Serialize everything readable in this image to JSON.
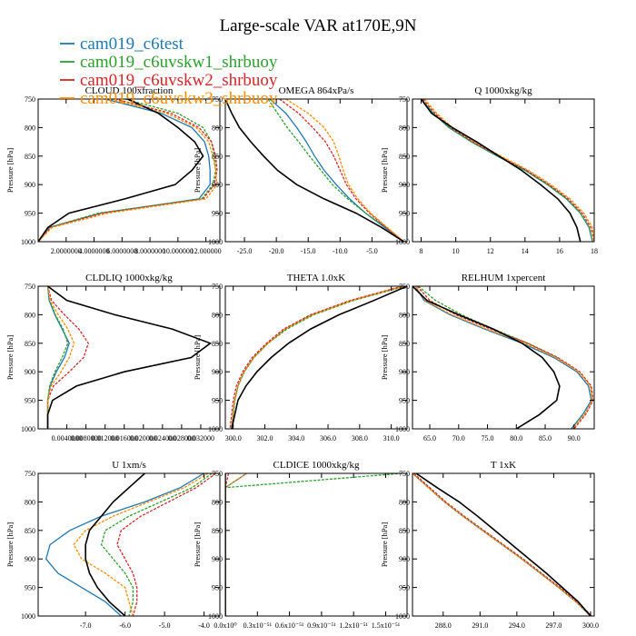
{
  "title": "Large-scale VAR at170E,9N",
  "colors": {
    "cam019_c6test": "#1f77b4",
    "cam019_c6uvskw1_shrbuoy": "#2ca02c",
    "cam019_c6uvskw2_shrbuoy": "#d62728",
    "cam019_c6uvskw3_shrbuoy": "#ff8c00",
    "reference": "#000000"
  },
  "legend": [
    {
      "name": "cam019_c6test",
      "color": "#1f77b4"
    },
    {
      "name": "cam019_c6uvskw1_shrbuoy",
      "color": "#2ca02c"
    },
    {
      "name": "cam019_c6uvskw2_shrbuoy",
      "color": "#d62728"
    },
    {
      "name": "cam019_c6uvskw3_shrbuoy",
      "color": "#ff8c00"
    }
  ],
  "chart_data": [
    {
      "type": "line",
      "title": "CLOUD 100xfraction",
      "xlabel": "",
      "ylabel": "Pressure [hPa]",
      "xlim": [
        0,
        0.13
      ],
      "ylim": [
        1000,
        750
      ],
      "xticks": [
        0.02,
        0.04,
        0.06,
        0.08,
        0.1,
        0.12
      ],
      "xtick_labels": [
        "2.0000000",
        "4.0000000",
        "6.0000000",
        "8.0000000",
        "10.000000",
        "12.000000"
      ],
      "yticks": [
        750,
        800,
        850,
        900,
        950,
        1000
      ],
      "p": [
        750,
        775,
        800,
        825,
        850,
        875,
        900,
        925,
        950,
        975,
        1000
      ],
      "series": [
        {
          "name": "cam019_c6test",
          "values": [
            0.048,
            0.088,
            0.11,
            0.119,
            0.122,
            0.123,
            0.123,
            0.115,
            0.045,
            0.008,
            0.0
          ]
        },
        {
          "name": "cam019_c6uvskw1_shrbuoy",
          "values": [
            0.062,
            0.1,
            0.118,
            0.124,
            0.126,
            0.127,
            0.125,
            0.117,
            0.043,
            0.008,
            0.0
          ]
        },
        {
          "name": "cam019_c6uvskw2_shrbuoy",
          "values": [
            0.055,
            0.095,
            0.115,
            0.124,
            0.127,
            0.128,
            0.126,
            0.118,
            0.046,
            0.009,
            0.0
          ]
        },
        {
          "name": "cam019_c6uvskw3_shrbuoy",
          "values": [
            0.052,
            0.092,
            0.113,
            0.122,
            0.125,
            0.127,
            0.128,
            0.12,
            0.05,
            0.01,
            0.0
          ]
        },
        {
          "name": "",
          "values": [
            0.064,
            0.086,
            0.1,
            0.112,
            0.118,
            0.11,
            0.098,
            0.062,
            0.022,
            0.007,
            0.0
          ]
        }
      ]
    },
    {
      "type": "line",
      "title": "OMEGA 864xPa/s",
      "xlabel": "",
      "ylabel": "Pressure [hPa]",
      "xlim": [
        -28.0,
        0.5
      ],
      "ylim": [
        1000,
        750
      ],
      "xticks": [
        -25,
        -20,
        -15,
        -10,
        -5
      ],
      "xtick_labels": [
        "-25.0",
        "-20.0",
        "-15.0",
        "-10.0",
        "-5.0"
      ],
      "yticks": [
        750,
        800,
        850,
        900,
        950,
        1000
      ],
      "p": [
        750,
        775,
        800,
        825,
        850,
        875,
        900,
        925,
        950,
        975,
        1000
      ],
      "series": [
        {
          "name": "cam019_c6test",
          "values": [
            -21.0,
            -18.5,
            -16.8,
            -15.3,
            -14.0,
            -12.5,
            -10.6,
            -8.5,
            -6.0,
            -3.0,
            0.0
          ]
        },
        {
          "name": "cam019_c6uvskw1_shrbuoy",
          "values": [
            -21.3,
            -19.8,
            -18.3,
            -16.5,
            -14.8,
            -13.0,
            -11.2,
            -8.8,
            -6.0,
            -2.8,
            0.0
          ]
        },
        {
          "name": "cam019_c6uvskw2_shrbuoy",
          "values": [
            -19.5,
            -16.5,
            -14.3,
            -12.3,
            -11.0,
            -10.0,
            -9.0,
            -7.5,
            -5.4,
            -2.8,
            0.0
          ]
        },
        {
          "name": "cam019_c6uvskw3_shrbuoy",
          "values": [
            -18.5,
            -15.0,
            -12.5,
            -11.0,
            -10.2,
            -9.5,
            -8.7,
            -7.2,
            -5.2,
            -2.6,
            0.0
          ]
        },
        {
          "name": "",
          "values": [
            -28.0,
            -27.0,
            -25.8,
            -24.0,
            -22.0,
            -19.8,
            -16.8,
            -12.5,
            -7.5,
            -3.5,
            0.0
          ]
        }
      ]
    },
    {
      "type": "line",
      "title": "Q 1000xkg/kg",
      "xlabel": "",
      "ylabel": "Pressure [hPa]",
      "xlim": [
        7.5,
        18
      ],
      "ylim": [
        1000,
        750
      ],
      "xticks": [
        8,
        10,
        12,
        14,
        16,
        18
      ],
      "xtick_labels": [
        "8",
        "10",
        "12",
        "14",
        "16",
        "18"
      ],
      "yticks": [
        750,
        800,
        850,
        900,
        950,
        1000
      ],
      "p": [
        750,
        775,
        800,
        825,
        850,
        875,
        900,
        925,
        950,
        975,
        1000
      ],
      "series": [
        {
          "name": "cam019_c6test",
          "values": [
            8.0,
            8.7,
            9.6,
            10.9,
            12.4,
            14.0,
            15.3,
            16.4,
            17.2,
            17.7,
            17.9
          ]
        },
        {
          "name": "cam019_c6uvskw1_shrbuoy",
          "values": [
            8.0,
            8.7,
            9.6,
            10.9,
            12.4,
            14.0,
            15.3,
            16.4,
            17.2,
            17.7,
            17.9
          ]
        },
        {
          "name": "cam019_c6uvskw2_shrbuoy",
          "values": [
            8.1,
            8.8,
            9.7,
            11.0,
            12.5,
            14.1,
            15.4,
            16.5,
            17.3,
            17.8,
            18.0
          ]
        },
        {
          "name": "cam019_c6uvskw3_shrbuoy",
          "values": [
            8.2,
            8.9,
            9.8,
            11.1,
            12.6,
            14.2,
            15.5,
            16.6,
            17.4,
            17.9,
            18.0
          ]
        },
        {
          "name": "",
          "values": [
            8.0,
            8.6,
            9.8,
            11.2,
            12.5,
            13.8,
            14.9,
            15.9,
            16.6,
            17.0,
            17.2
          ]
        }
      ]
    },
    {
      "type": "line",
      "title": "CLDLIQ 1000xkg/kg",
      "xlabel": "",
      "ylabel": "Pressure [hPa]",
      "xlim": [
        -0.002,
        0.036
      ],
      "ylim": [
        1000,
        750
      ],
      "xticks": [
        0.004,
        0.008,
        0.012,
        0.016,
        0.02,
        0.024,
        0.028,
        0.032
      ],
      "xtick_labels": [
        "0.0040000",
        "0.0080000",
        "0.012000",
        "0.016000",
        "0.020000",
        "0.024000",
        "0.028000",
        "0.032000"
      ],
      "yticks": [
        750,
        800,
        850,
        900,
        950,
        1000
      ],
      "p": [
        750,
        775,
        800,
        825,
        850,
        875,
        900,
        925,
        950,
        975,
        1000
      ],
      "series": [
        {
          "name": "cam019_c6test",
          "values": [
            0.0,
            0.0003,
            0.0015,
            0.003,
            0.0045,
            0.0035,
            0.0018,
            0.0005,
            0.0,
            0.0,
            0.0
          ]
        },
        {
          "name": "cam019_c6uvskw1_shrbuoy",
          "values": [
            0.0,
            0.0004,
            0.0016,
            0.0032,
            0.0042,
            0.003,
            0.0015,
            0.0004,
            0.0,
            0.0,
            0.0
          ]
        },
        {
          "name": "cam019_c6uvskw2_shrbuoy",
          "values": [
            0.0,
            0.0008,
            0.0035,
            0.0065,
            0.0085,
            0.0075,
            0.0045,
            0.0012,
            0.0,
            0.0,
            0.0
          ]
        },
        {
          "name": "cam019_c6uvskw3_shrbuoy",
          "values": [
            0.0,
            0.0005,
            0.0022,
            0.0042,
            0.0055,
            0.0045,
            0.0028,
            0.0007,
            0.0,
            0.0,
            0.0
          ]
        },
        {
          "name": "",
          "values": [
            0.0,
            0.004,
            0.014,
            0.026,
            0.034,
            0.03,
            0.016,
            0.006,
            0.001,
            0.0,
            0.0
          ]
        }
      ]
    },
    {
      "type": "line",
      "title": "THETA 1.0xK",
      "xlabel": "",
      "ylabel": "Pressure [hPa]",
      "xlim": [
        299.5,
        311.0
      ],
      "ylim": [
        1000,
        750
      ],
      "xticks": [
        300,
        302,
        304,
        306,
        308,
        310
      ],
      "xtick_labels": [
        "300.0",
        "302.0",
        "304.0",
        "306.0",
        "308.0",
        "310.0"
      ],
      "yticks": [
        750,
        800,
        850,
        900,
        950,
        1000
      ],
      "p": [
        750,
        775,
        800,
        825,
        850,
        875,
        900,
        925,
        950,
        975,
        1000
      ],
      "series": [
        {
          "name": "cam019_c6test",
          "values": [
            310.8,
            307.5,
            305.0,
            303.3,
            302.2,
            301.3,
            300.7,
            300.3,
            300.1,
            300.0,
            299.9
          ]
        },
        {
          "name": "cam019_c6uvskw1_shrbuoy",
          "values": [
            310.9,
            307.6,
            305.1,
            303.4,
            302.2,
            301.3,
            300.7,
            300.3,
            300.1,
            300.0,
            299.9
          ]
        },
        {
          "name": "cam019_c6uvskw2_shrbuoy",
          "values": [
            310.7,
            307.4,
            304.9,
            303.2,
            302.1,
            301.2,
            300.6,
            300.2,
            300.0,
            299.9,
            299.8
          ]
        },
        {
          "name": "cam019_c6uvskw3_shrbuoy",
          "values": [
            310.8,
            307.5,
            305.0,
            303.3,
            302.2,
            301.3,
            300.7,
            300.3,
            300.1,
            300.0,
            299.9
          ]
        },
        {
          "name": "",
          "values": [
            311.0,
            308.9,
            306.7,
            304.9,
            303.5,
            302.4,
            301.5,
            300.8,
            300.3,
            300.1,
            299.9
          ]
        }
      ]
    },
    {
      "type": "line",
      "title": "RELHUM 1xpercent",
      "xlabel": "",
      "ylabel": "Pressure [hPa]",
      "xlim": [
        62,
        93.5
      ],
      "ylim": [
        1000,
        750
      ],
      "xticks": [
        65,
        70,
        75,
        80,
        85,
        90
      ],
      "xtick_labels": [
        "65.0",
        "70.0",
        "75.0",
        "80.0",
        "85.0",
        "90.0"
      ],
      "yticks": [
        750,
        800,
        850,
        900,
        950,
        1000
      ],
      "p": [
        750,
        775,
        800,
        825,
        850,
        875,
        900,
        925,
        950,
        975,
        1000
      ],
      "series": [
        {
          "name": "cam019_c6test",
          "values": [
            62.5,
            64.0,
            68.5,
            74.5,
            81.0,
            86.5,
            90.5,
            92.5,
            93.0,
            91.5,
            89.5
          ]
        },
        {
          "name": "cam019_c6uvskw1_shrbuoy",
          "values": [
            63.0,
            66.0,
            70.5,
            76.0,
            82.0,
            87.0,
            90.8,
            92.8,
            93.2,
            91.8,
            89.8
          ]
        },
        {
          "name": "cam019_c6uvskw2_shrbuoy",
          "values": [
            62.8,
            65.0,
            69.5,
            75.5,
            82.0,
            87.2,
            91.0,
            93.0,
            93.3,
            92.0,
            90.0
          ]
        },
        {
          "name": "cam019_c6uvskw3_shrbuoy",
          "values": [
            62.5,
            64.2,
            68.8,
            74.8,
            81.5,
            86.8,
            90.8,
            92.8,
            93.2,
            91.8,
            89.8
          ]
        },
        {
          "name": "",
          "values": [
            62.0,
            64.5,
            70.0,
            76.0,
            81.0,
            84.5,
            86.5,
            87.5,
            87.0,
            84.0,
            80.0
          ]
        }
      ]
    },
    {
      "type": "line",
      "title": "U 1xm/s",
      "xlabel": "",
      "ylabel": "Pressure [hPa]",
      "xlim": [
        -8.2,
        -3.6
      ],
      "ylim": [
        1000,
        750
      ],
      "xticks": [
        -7,
        -6,
        -5,
        -4
      ],
      "xtick_labels": [
        "-7.0",
        "-6.0",
        "-5.0",
        "-4.0"
      ],
      "yticks": [
        750,
        800,
        850,
        900,
        950,
        1000
      ],
      "p": [
        750,
        775,
        800,
        825,
        850,
        875,
        900,
        925,
        950,
        975,
        1000
      ],
      "series": [
        {
          "name": "cam019_c6test",
          "values": [
            -4.0,
            -4.6,
            -5.5,
            -6.6,
            -7.4,
            -7.9,
            -8.0,
            -7.7,
            -7.1,
            -6.5,
            -6.1
          ]
        },
        {
          "name": "cam019_c6uvskw1_shrbuoy",
          "values": [
            -3.8,
            -4.3,
            -5.1,
            -5.9,
            -6.5,
            -6.6,
            -6.3,
            -6.0,
            -5.8,
            -5.8,
            -5.9
          ]
        },
        {
          "name": "cam019_c6uvskw2_shrbuoy",
          "values": [
            -3.7,
            -4.2,
            -4.9,
            -5.6,
            -6.1,
            -6.2,
            -6.0,
            -5.8,
            -5.7,
            -5.7,
            -5.8
          ]
        },
        {
          "name": "cam019_c6uvskw3_shrbuoy",
          "values": [
            -3.9,
            -4.5,
            -5.4,
            -6.3,
            -7.0,
            -7.3,
            -7.1,
            -6.5,
            -6.0,
            -5.9,
            -5.8
          ]
        },
        {
          "name": "",
          "values": [
            -5.5,
            -5.9,
            -6.3,
            -6.6,
            -6.9,
            -7.0,
            -7.0,
            -6.9,
            -6.7,
            -6.4,
            -6.0
          ]
        }
      ]
    },
    {
      "type": "line",
      "title": "CLDICE 1000xkg/kg",
      "xlabel": "",
      "ylabel": "Pressure [hPa]",
      "xlim": [
        0,
        1.7e-51
      ],
      "ylim": [
        1000,
        750
      ],
      "xticks": [
        0,
        3e-52,
        6e-52,
        9e-52,
        1.2e-51,
        1.5e-51
      ],
      "xtick_labels": [
        "0.0x10⁰",
        "0.3x10⁻⁵¹",
        "0.6x10⁻⁵¹",
        "0.9x10⁻⁵¹",
        "1.2x10⁻⁵¹",
        "1.5x10⁻⁵¹"
      ],
      "yticks": [
        750,
        800,
        850,
        900,
        950,
        1000
      ],
      "p": [
        750,
        775,
        1000
      ],
      "series": [
        {
          "name": "cam019_c6test",
          "values": [
            2e-52,
            0,
            0
          ]
        },
        {
          "name": "cam019_c6uvskw1_shrbuoy",
          "values": [
            1.65e-51,
            0,
            0
          ]
        },
        {
          "name": "cam019_c6uvskw2_shrbuoy",
          "values": [
            3e-53,
            0,
            0
          ]
        },
        {
          "name": "cam019_c6uvskw3_shrbuoy",
          "values": [
            2e-52,
            0,
            0
          ]
        },
        {
          "name": "",
          "values": [
            0,
            0,
            0
          ]
        }
      ]
    },
    {
      "type": "line",
      "title": "T 1xK",
      "xlabel": "",
      "ylabel": "Pressure [hPa]",
      "xlim": [
        285.5,
        300.3
      ],
      "ylim": [
        1000,
        750
      ],
      "xticks": [
        288,
        291,
        294,
        297,
        300
      ],
      "xtick_labels": [
        "288.0",
        "291.0",
        "294.0",
        "297.0",
        "300.0"
      ],
      "yticks": [
        750,
        800,
        850,
        900,
        950,
        1000
      ],
      "p": [
        750,
        775,
        800,
        825,
        850,
        875,
        900,
        925,
        950,
        975,
        1000
      ],
      "series": [
        {
          "name": "cam019_c6test",
          "values": [
            285.5,
            286.8,
            288.1,
            289.6,
            291.2,
            292.8,
            294.4,
            295.9,
            297.4,
            298.8,
            300.0
          ]
        },
        {
          "name": "cam019_c6uvskw1_shrbuoy",
          "values": [
            285.6,
            286.9,
            288.2,
            289.7,
            291.3,
            292.9,
            294.5,
            296.0,
            297.5,
            298.9,
            300.1
          ]
        },
        {
          "name": "cam019_c6uvskw2_shrbuoy",
          "values": [
            285.6,
            286.9,
            288.2,
            289.7,
            291.3,
            292.9,
            294.5,
            296.0,
            297.5,
            298.9,
            300.1
          ]
        },
        {
          "name": "cam019_c6uvskw3_shrbuoy",
          "values": [
            285.5,
            286.8,
            288.1,
            289.6,
            291.2,
            292.8,
            294.4,
            295.9,
            297.4,
            298.8,
            300.0
          ]
        },
        {
          "name": "",
          "values": [
            285.8,
            287.5,
            289.3,
            290.8,
            292.2,
            293.6,
            295.0,
            296.4,
            297.7,
            299.0,
            300.0
          ]
        }
      ]
    }
  ]
}
